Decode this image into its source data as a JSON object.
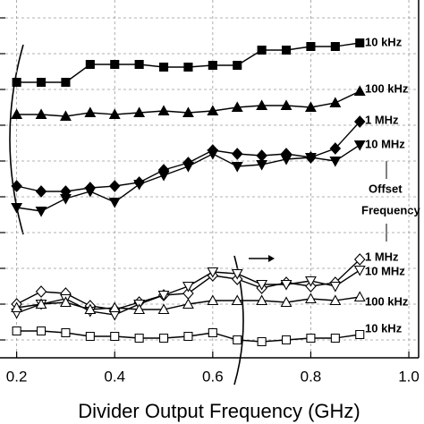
{
  "chart_data": {
    "type": "line",
    "xlabel": "Divider Output Frequency (GHz)",
    "annotation": [
      "Offset",
      "Frequency"
    ],
    "x": [
      0.2,
      0.25,
      0.3,
      0.35,
      0.4,
      0.45,
      0.5,
      0.55,
      0.6,
      0.65,
      0.7,
      0.75,
      0.8,
      0.85,
      0.9
    ],
    "xlim": [
      0.166,
      1.02
    ],
    "xticks": [
      0.2,
      0.4,
      0.6,
      0.8,
      {
        "value": 1,
        "label": "1.0"
      }
    ],
    "ylim": [
      0,
      100
    ],
    "yticks": [
      5,
      15,
      25,
      35,
      45,
      55,
      65,
      75,
      85,
      95
    ],
    "grid": true,
    "series": [
      {
        "name": "10 kHz",
        "color": "#000000",
        "marker": "square",
        "filled": true,
        "values": [
          77,
          77,
          77,
          82,
          82,
          82,
          81.25,
          81.25,
          81.75,
          81.75,
          86,
          86,
          87,
          87,
          88
        ]
      },
      {
        "name": "100 kHz",
        "color": "#000000",
        "marker": "triangle",
        "filled": true,
        "values": [
          68,
          68,
          67.5,
          68.5,
          68,
          68.5,
          69,
          68.5,
          69,
          70,
          70.5,
          70.5,
          70,
          71.25,
          74.5
        ]
      },
      {
        "name": "1 MHz",
        "color": "#000000",
        "marker": "diamond",
        "filled": true,
        "values": [
          48,
          46.5,
          46.5,
          47.5,
          48,
          49,
          52.5,
          54.5,
          58,
          57,
          56.5,
          57,
          56,
          58.5,
          66
        ]
      },
      {
        "name": "10 MHz",
        "color": "#000000",
        "marker": "triangle-down",
        "filled": true,
        "values": [
          42,
          41,
          44.5,
          46.5,
          43.5,
          48.5,
          51,
          53.5,
          57,
          53.5,
          54,
          55.5,
          56,
          55,
          59.5
        ]
      },
      {
        "name": "1 MHz",
        "color": "#000000",
        "marker": "diamond",
        "filled": false,
        "values": [
          15,
          18.5,
          18,
          14.5,
          13.5,
          15.5,
          17.5,
          18,
          23,
          22,
          19.5,
          21,
          20,
          21,
          27.5
        ]
      },
      {
        "name": "10 MHz",
        "color": "#000000",
        "marker": "triangle-down",
        "filled": false,
        "values": [
          12.5,
          15,
          16.5,
          13,
          12,
          15,
          17.5,
          20,
          24,
          23.5,
          20.5,
          20.5,
          21.5,
          20,
          24.5
        ]
      },
      {
        "name": "100 kHz",
        "color": "#000000",
        "marker": "triangle",
        "filled": false,
        "values": [
          14,
          15,
          15.5,
          13.5,
          14,
          13.5,
          13.5,
          15,
          16,
          16,
          16,
          15.5,
          16.5,
          16,
          17
        ]
      },
      {
        "name": "10 kHz",
        "color": "#000000",
        "marker": "square",
        "filled": false,
        "values": [
          7.5,
          7.5,
          7,
          6,
          6,
          5.5,
          5.5,
          6,
          7,
          5,
          4.5,
          5,
          5.5,
          5.5,
          6.5
        ]
      }
    ]
  }
}
